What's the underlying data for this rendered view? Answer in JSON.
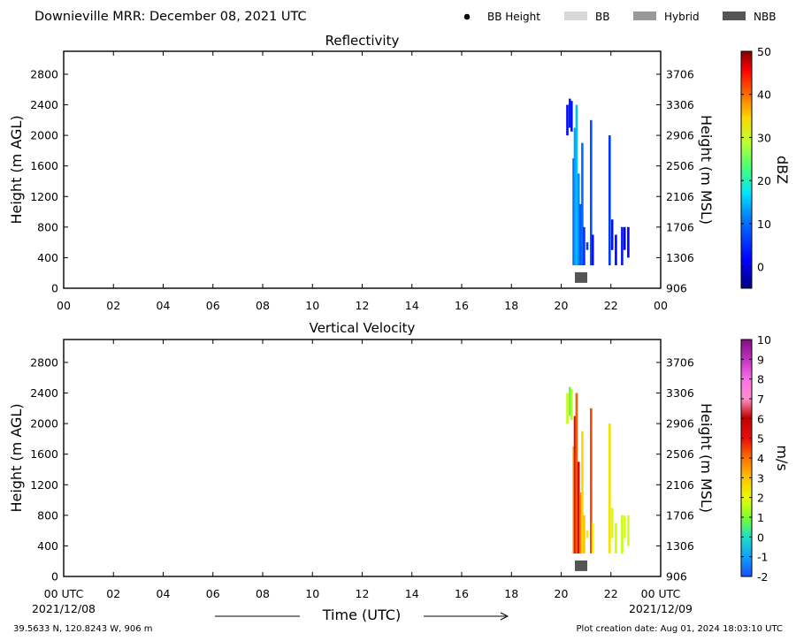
{
  "header": {
    "title": "Downieville MRR:  December 08, 2021 UTC",
    "legend": [
      {
        "label": "BB Height",
        "kind": "dot",
        "color": "#000000"
      },
      {
        "label": "BB",
        "kind": "box",
        "color": "#d9d9d9"
      },
      {
        "label": "Hybrid",
        "kind": "box",
        "color": "#999999"
      },
      {
        "label": "NBB",
        "kind": "box",
        "color": "#555555"
      }
    ]
  },
  "x_ticks": [
    "00",
    "02",
    "04",
    "06",
    "08",
    "10",
    "12",
    "14",
    "16",
    "18",
    "20",
    "22",
    "00"
  ],
  "x_ticks_bottom": [
    "00 UTC",
    "02",
    "04",
    "06",
    "08",
    "10",
    "12",
    "14",
    "16",
    "18",
    "20",
    "22",
    "00 UTC"
  ],
  "y_ticks_left": [
    "0",
    "400",
    "800",
    "1200",
    "1600",
    "2000",
    "2400",
    "2800"
  ],
  "y_ticks_right": [
    "906",
    "1306",
    "1706",
    "2106",
    "2506",
    "2906",
    "3306",
    "3706"
  ],
  "footer": {
    "date_start": "2021/12/08",
    "date_end": "2021/12/09",
    "xlabel": "Time (UTC)",
    "location": "39.5633 N, 120.8243 W, 906 m",
    "creation": "Plot creation date: Aug 01, 2024 18:03:10 UTC"
  },
  "chart_data": [
    {
      "type": "heatmap",
      "title": "Reflectivity",
      "ylabel": "Height (m AGL)",
      "ylabel_right": "Height (m MSL)",
      "xlim": [
        0,
        24
      ],
      "ylim": [
        0,
        3100
      ],
      "colorbar": {
        "label": "dBZ",
        "range": [
          -5,
          50
        ],
        "ticks": [
          "0",
          "10",
          "20",
          "30",
          "40",
          "50"
        ],
        "tick_values": [
          0,
          10,
          20,
          30,
          40,
          50
        ]
      },
      "bright_band": [
        {
          "x": 20.8,
          "y": 140,
          "class": "NBB"
        }
      ],
      "columns": [
        {
          "x": 20.25,
          "y0": 2000,
          "y1": 2400,
          "value": 2
        },
        {
          "x": 20.35,
          "y0": 2100,
          "y1": 2480,
          "value": 4
        },
        {
          "x": 20.42,
          "y0": 2050,
          "y1": 2450,
          "value": 3
        },
        {
          "x": 20.5,
          "y0": 300,
          "y1": 1700,
          "value": 9
        },
        {
          "x": 20.55,
          "y0": 300,
          "y1": 2100,
          "value": 13
        },
        {
          "x": 20.62,
          "y0": 300,
          "y1": 2400,
          "value": 15
        },
        {
          "x": 20.7,
          "y0": 300,
          "y1": 1500,
          "value": 12
        },
        {
          "x": 20.77,
          "y0": 300,
          "y1": 1100,
          "value": 8
        },
        {
          "x": 20.85,
          "y0": 300,
          "y1": 1900,
          "value": 10
        },
        {
          "x": 20.92,
          "y0": 300,
          "y1": 800,
          "value": 5
        },
        {
          "x": 21.05,
          "y0": 500,
          "y1": 600,
          "value": 6
        },
        {
          "x": 21.2,
          "y0": 300,
          "y1": 2200,
          "value": 8
        },
        {
          "x": 21.27,
          "y0": 300,
          "y1": 700,
          "value": 2
        },
        {
          "x": 21.95,
          "y0": 300,
          "y1": 2000,
          "value": 6
        },
        {
          "x": 22.05,
          "y0": 500,
          "y1": 900,
          "value": 3
        },
        {
          "x": 22.2,
          "y0": 300,
          "y1": 700,
          "value": 2
        },
        {
          "x": 22.45,
          "y0": 300,
          "y1": 800,
          "value": 3
        },
        {
          "x": 22.55,
          "y0": 500,
          "y1": 800,
          "value": 1
        },
        {
          "x": 22.7,
          "y0": 400,
          "y1": 800,
          "value": 1
        }
      ]
    },
    {
      "type": "heatmap",
      "title": "Vertical Velocity",
      "ylabel": "Height (m AGL)",
      "ylabel_right": "Height (m MSL)",
      "xlim": [
        0,
        24
      ],
      "ylim": [
        0,
        3100
      ],
      "colorbar": {
        "label": "m/s",
        "range": [
          -2,
          10
        ],
        "ticks": [
          "-2",
          "-1",
          "0",
          "1",
          "2",
          "3",
          "4",
          "5",
          "6",
          "7",
          "8",
          "9",
          "10"
        ],
        "tick_values": [
          -2,
          -1,
          0,
          1,
          2,
          3,
          4,
          5,
          6,
          7,
          8,
          9,
          10
        ]
      },
      "bright_band": [
        {
          "x": 20.8,
          "y": 140,
          "class": "NBB"
        }
      ],
      "columns": [
        {
          "x": 20.25,
          "y0": 2000,
          "y1": 2400,
          "value": 1.6
        },
        {
          "x": 20.35,
          "y0": 2100,
          "y1": 2480,
          "value": 0.8
        },
        {
          "x": 20.42,
          "y0": 2050,
          "y1": 2450,
          "value": 1.5
        },
        {
          "x": 20.5,
          "y0": 300,
          "y1": 1700,
          "value": 3.2
        },
        {
          "x": 20.55,
          "y0": 300,
          "y1": 2100,
          "value": 5.2
        },
        {
          "x": 20.62,
          "y0": 300,
          "y1": 2400,
          "value": 4.2
        },
        {
          "x": 20.7,
          "y0": 300,
          "y1": 1500,
          "value": 5.6
        },
        {
          "x": 20.77,
          "y0": 300,
          "y1": 1100,
          "value": 3.8
        },
        {
          "x": 20.85,
          "y0": 300,
          "y1": 1900,
          "value": 2.6
        },
        {
          "x": 20.92,
          "y0": 300,
          "y1": 800,
          "value": 3.0
        },
        {
          "x": 21.05,
          "y0": 500,
          "y1": 600,
          "value": 2.2
        },
        {
          "x": 21.2,
          "y0": 300,
          "y1": 2200,
          "value": 4.4
        },
        {
          "x": 21.27,
          "y0": 300,
          "y1": 700,
          "value": 2.0
        },
        {
          "x": 21.95,
          "y0": 300,
          "y1": 2000,
          "value": 2.4
        },
        {
          "x": 22.05,
          "y0": 500,
          "y1": 900,
          "value": 1.8
        },
        {
          "x": 22.2,
          "y0": 300,
          "y1": 700,
          "value": 1.7
        },
        {
          "x": 22.45,
          "y0": 300,
          "y1": 800,
          "value": 1.6
        },
        {
          "x": 22.55,
          "y0": 500,
          "y1": 800,
          "value": 1.9
        },
        {
          "x": 22.7,
          "y0": 400,
          "y1": 800,
          "value": 1.7
        }
      ]
    }
  ]
}
